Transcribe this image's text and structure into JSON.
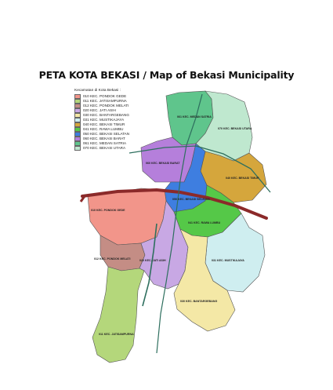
{
  "title": "PETA KOTA BEKASI / Map of Bekasi Municipality",
  "legend": {
    "heading": "Kecamatan di Kota Bekasi :",
    "items": [
      {
        "label": "010 KEC. PONDOK GEDE",
        "color": "#f2958a"
      },
      {
        "label": "011 KEC. JATISAMPURNA",
        "color": "#b4d77b"
      },
      {
        "label": "012 KEC. PONDOK MELATI",
        "color": "#c48d85"
      },
      {
        "label": "020 KEC. JATI ASIH",
        "color": "#c8a8e4"
      },
      {
        "label": "030 KEC. BANTARGEBANG",
        "color": "#f4e8a6"
      },
      {
        "label": "031 KEC. MUSTIKAJAYA",
        "color": "#cfeef0"
      },
      {
        "label": "040 KEC. BEKASI TIMUR",
        "color": "#d5a63c"
      },
      {
        "label": "041 KEC. RAWA LUMBU",
        "color": "#55c848"
      },
      {
        "label": "050 KEC. BEKASI SELATAN",
        "color": "#3e7ee0"
      },
      {
        "label": "060 KEC. BEKASI BARAT",
        "color": "#b57fdb"
      },
      {
        "label": "061 KEC. MEDAN SATRIA",
        "color": "#5fc58c"
      },
      {
        "label": "070 KEC. BEKASI UTARA",
        "color": "#bfe8cf"
      }
    ]
  },
  "districts": [
    {
      "id": "medan-satria",
      "label": "061 KEC. MEDAN SATRIA",
      "color": "#5fc58c"
    },
    {
      "id": "bekasi-utara",
      "label": "070 KEC. BEKASI UTARA",
      "color": "#bfe8cf"
    },
    {
      "id": "bekasi-barat",
      "label": "060 KEC. BEKASI BARAT",
      "color": "#b57fdb"
    },
    {
      "id": "bekasi-timur",
      "label": "040 KEC. BEKASI TIMUR",
      "color": "#d5a63c"
    },
    {
      "id": "bekasi-selatan",
      "label": "050 KEC. BEKASI SELATAN",
      "color": "#3e7ee0"
    },
    {
      "id": "pondok-gede",
      "label": "010 KEC. PONDOK GEDE",
      "color": "#f2958a"
    },
    {
      "id": "rawa-lumbu",
      "label": "041 KEC. RAWA LUMBU",
      "color": "#55c848"
    },
    {
      "id": "pondok-melati",
      "label": "012 KEC. PONDOK MELATI",
      "color": "#c48d85"
    },
    {
      "id": "jati-asih",
      "label": "020 KEC. JATI ASIH",
      "color": "#c8a8e4"
    },
    {
      "id": "mustikajaya",
      "label": "031 KEC. MUSTIKAJAYA",
      "color": "#cfeef0"
    },
    {
      "id": "bantargebang",
      "label": "030 KEC. BANTARGEBANG",
      "color": "#f4e8a6"
    },
    {
      "id": "jatisampurna",
      "label": "011 KEC. JATISAMPURNA",
      "color": "#b4d77b"
    }
  ],
  "colors": {
    "toll_road": "#8b2a2a",
    "river": "#2e6f5e",
    "boundary": "#555555"
  }
}
